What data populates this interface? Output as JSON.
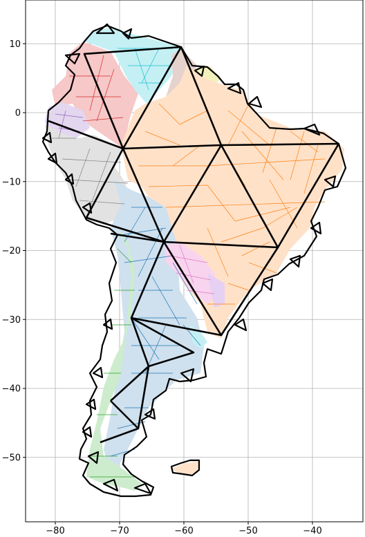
{
  "chart_data": {
    "type": "map",
    "title": "",
    "xlabel": "",
    "ylabel": "",
    "xlim": [
      -85,
      -32
    ],
    "ylim": [
      -60,
      16
    ],
    "grid": true,
    "x_ticks": [
      -80,
      -70,
      -60,
      -50,
      -40
    ],
    "y_ticks": [
      10,
      0,
      -10,
      -20,
      -30,
      -40,
      -50
    ],
    "x_tick_labels": [
      "−80",
      "−70",
      "−60",
      "−50",
      "−40"
    ],
    "y_tick_labels": [
      "10",
      "0",
      "−10",
      "−20",
      "−30",
      "−40",
      "−50"
    ],
    "regions": [
      {
        "id": "red",
        "color": "#d62728",
        "fill": "#f6c8c8"
      },
      {
        "id": "cyan",
        "color": "#17becf",
        "fill": "#c4f0f4"
      },
      {
        "id": "brown",
        "color": "#8c564b",
        "fill": "#e5d2cd"
      },
      {
        "id": "olive",
        "color": "#bcbd22",
        "fill": "#f1f1bd"
      },
      {
        "id": "purple",
        "color": "#9467bd",
        "fill": "#e3d6ef"
      },
      {
        "id": "gray",
        "color": "#7f7f7f",
        "fill": "#e2e2e2"
      },
      {
        "id": "orange",
        "color": "#ff7f0e",
        "fill": "#ffe1c8"
      },
      {
        "id": "blue",
        "color": "#1f77b4",
        "fill": "#cfe0ee"
      },
      {
        "id": "green",
        "color": "#2ca02c",
        "fill": "#cdeccd"
      },
      {
        "id": "pink",
        "color": "#e377c2",
        "fill": "#f8d4ee"
      }
    ]
  }
}
